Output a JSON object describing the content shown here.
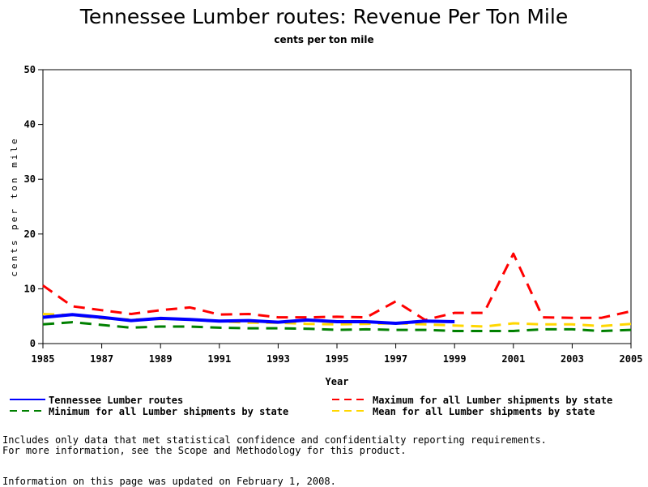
{
  "chart_data": {
    "type": "line",
    "title": "Tennessee Lumber routes: Revenue Per Ton Mile",
    "subtitle": "cents per ton mile",
    "xlabel": "Year",
    "ylabel": "cents per ton mile",
    "xlim": [
      1985,
      2005
    ],
    "ylim": [
      0,
      50
    ],
    "x_ticks": [
      1985,
      1987,
      1989,
      1991,
      1993,
      1995,
      1997,
      1999,
      2001,
      2003,
      2005
    ],
    "y_ticks": [
      0,
      10,
      20,
      30,
      40,
      50
    ],
    "grid": false,
    "legend_position": "bottom",
    "series": [
      {
        "name": "Tennessee Lumber routes",
        "color": "#0000ff",
        "style": "solid",
        "x": [
          1985,
          1986,
          1987,
          1988,
          1989,
          1990,
          1991,
          1992,
          1993,
          1994,
          1995,
          1996,
          1997,
          1998,
          1999
        ],
        "values": [
          4.8,
          5.3,
          4.8,
          4.2,
          4.6,
          4.4,
          4.1,
          4.2,
          3.9,
          4.3,
          4.0,
          4.0,
          3.7,
          4.1,
          4.0
        ]
      },
      {
        "name": "Maximum for all Lumber shipments by state",
        "color": "#ff0000",
        "style": "dashed",
        "x": [
          1985,
          1986,
          1987,
          1988,
          1989,
          1990,
          1991,
          1992,
          1993,
          1994,
          1995,
          1996,
          1997,
          1998,
          1999,
          2000,
          2001,
          2002,
          2003,
          2004,
          2005
        ],
        "values": [
          10.6,
          6.8,
          6.1,
          5.4,
          6.1,
          6.6,
          5.3,
          5.4,
          4.8,
          4.8,
          4.9,
          4.8,
          7.7,
          4.3,
          5.6,
          5.6,
          16.4,
          4.8,
          4.7,
          4.7,
          5.9
        ]
      },
      {
        "name": "Minimum for all Lumber shipments by state",
        "color": "#008000",
        "style": "dashed",
        "x": [
          1985,
          1986,
          1987,
          1988,
          1989,
          1990,
          1991,
          1992,
          1993,
          1994,
          1995,
          1996,
          1997,
          1998,
          1999,
          2000,
          2001,
          2002,
          2003,
          2004,
          2005
        ],
        "values": [
          3.5,
          3.9,
          3.4,
          2.9,
          3.1,
          3.1,
          2.9,
          2.8,
          2.8,
          2.7,
          2.5,
          2.6,
          2.5,
          2.5,
          2.3,
          2.3,
          2.3,
          2.6,
          2.6,
          2.3,
          2.5
        ]
      },
      {
        "name": "Mean for all Lumber shipments by state",
        "color": "#ffd700",
        "style": "dashed",
        "x": [
          1985,
          1986,
          1987,
          1988,
          1989,
          1990,
          1991,
          1992,
          1993,
          1994,
          1995,
          1996,
          1997,
          1998,
          1999,
          2000,
          2001,
          2002,
          2003,
          2004,
          2005
        ],
        "values": [
          5.4,
          5.2,
          4.6,
          4.4,
          4.5,
          4.4,
          4.1,
          3.8,
          3.8,
          3.6,
          3.5,
          3.6,
          3.7,
          3.5,
          3.3,
          3.1,
          3.7,
          3.5,
          3.5,
          3.2,
          3.6
        ]
      }
    ]
  },
  "notes": {
    "line1": "Includes only data that met statistical confidence and confidentialty reporting requirements.",
    "line2": "For more information, see the Scope and Methodology for this product.",
    "line3": "Information on this page was updated on February 1, 2008."
  }
}
